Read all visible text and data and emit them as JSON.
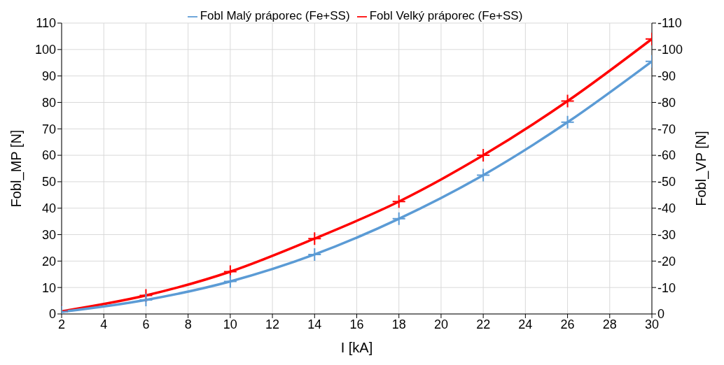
{
  "chart_data": {
    "type": "line",
    "xlabel": "I [kA]",
    "ylabel": "Fobl_MP [N]",
    "y2label": "Fobl_VP [N]",
    "x": [
      2,
      6,
      10,
      14,
      18,
      22,
      26,
      30
    ],
    "series": [
      {
        "name": "Fobl Malý práporec (Fe+SS)",
        "color": "#5b9bd5",
        "values": [
          0.8,
          5.3,
          12.3,
          22.5,
          36,
          52.5,
          72.5,
          95.5
        ]
      },
      {
        "name": "Fobl Velký práporec (Fe+SS)",
        "color": "#ff0000",
        "axis": "y2",
        "values": [
          -1,
          -7,
          -16,
          -28.5,
          -42.5,
          -60,
          -80.5,
          -104
        ]
      }
    ],
    "xlim": [
      2,
      30
    ],
    "xticks": [
      2,
      4,
      6,
      8,
      10,
      12,
      14,
      16,
      18,
      20,
      22,
      24,
      26,
      28,
      30
    ],
    "ylim": [
      0,
      110
    ],
    "yticks": [
      0,
      10,
      20,
      30,
      40,
      50,
      60,
      70,
      80,
      90,
      100,
      110
    ],
    "y2lim": [
      0,
      -110
    ],
    "y2ticks": [
      0,
      -10,
      -20,
      -30,
      -40,
      -50,
      -60,
      -70,
      -80,
      -90,
      -100,
      -110
    ],
    "grid": true,
    "legend": "top",
    "marker": "cross",
    "line_style": "solid"
  }
}
